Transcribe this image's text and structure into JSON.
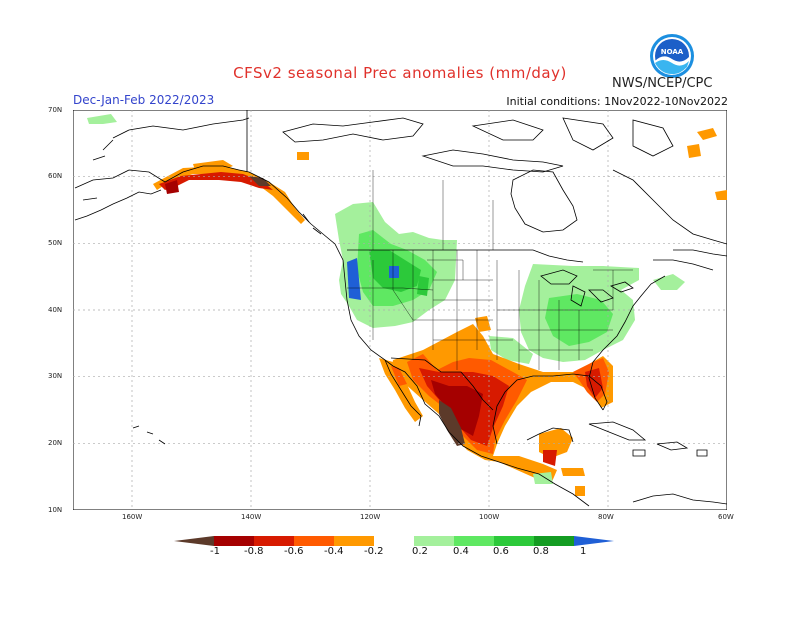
{
  "title": "CFSv2 seasonal Prec anomalies (mm/day)",
  "agency": "NWS/NCEP/CPC",
  "logo_text": "NOAA",
  "season_label": "Dec-Jan-Feb 2022/2023",
  "initial_conditions": "Initial conditions: 1Nov2022-10Nov2022",
  "lat_labels": [
    "70N",
    "60N",
    "50N",
    "40N",
    "30N",
    "20N",
    "10N"
  ],
  "lon_labels": [
    "160W",
    "140W",
    "120W",
    "100W",
    "80W",
    "60W"
  ],
  "colorbar": {
    "labels": [
      "-1",
      "-0.8",
      "-0.6",
      "-0.4",
      "-0.2",
      "0.2",
      "0.4",
      "0.6",
      "0.8",
      "1"
    ],
    "colors": [
      "#5c3a2a",
      "#a50000",
      "#d71a00",
      "#ff5a00",
      "#ff9900",
      "#ffffff",
      "#a4f09c",
      "#5fe862",
      "#2cc93a",
      "#149c22",
      "#1f5fd6"
    ]
  },
  "colors": {
    "title": "#e0312b",
    "season": "#3344cc",
    "grid": "#aaaaaa",
    "land_outline": "#000000"
  }
}
